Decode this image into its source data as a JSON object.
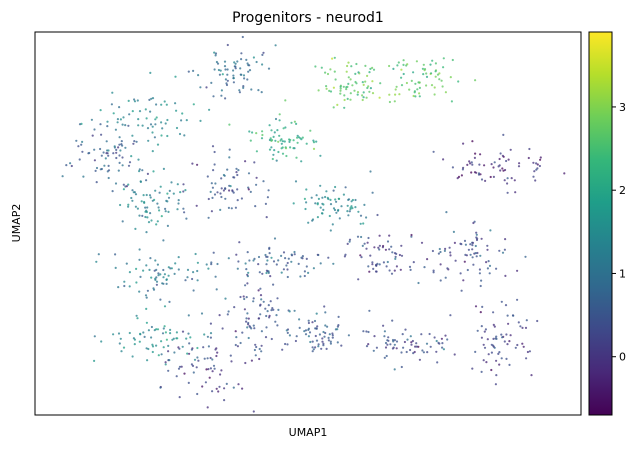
{
  "chart_data": {
    "type": "scatter",
    "title": "Progenitors - neurod1",
    "xlabel": "UMAP1",
    "ylabel": "UMAP2",
    "x_ticks_visible": false,
    "y_ticks_visible": false,
    "colorbar": {
      "colormap": "viridis",
      "range": [
        -0.7,
        3.9
      ],
      "ticks": [
        0,
        1,
        2,
        3
      ],
      "tick_labels": [
        "0",
        "1",
        "2",
        "3"
      ],
      "stops": [
        "#440154",
        "#482878",
        "#3e4989",
        "#31688e",
        "#26828e",
        "#1f9e89",
        "#35b779",
        "#6ece58",
        "#b5de2b",
        "#fde725"
      ]
    },
    "clusters": [
      {
        "x": 0.7,
        "y": 0.88,
        "value": 2.6
      },
      {
        "x": 0.58,
        "y": 0.86,
        "value": 2.7
      },
      {
        "x": 0.46,
        "y": 0.72,
        "value": 2.1
      },
      {
        "x": 0.55,
        "y": 0.55,
        "value": 1.3
      },
      {
        "x": 0.85,
        "y": 0.65,
        "value": 0.0
      },
      {
        "x": 0.36,
        "y": 0.9,
        "value": 0.8
      },
      {
        "x": 0.22,
        "y": 0.77,
        "value": 1.4
      },
      {
        "x": 0.12,
        "y": 0.68,
        "value": 0.6
      },
      {
        "x": 0.21,
        "y": 0.55,
        "value": 1.3
      },
      {
        "x": 0.35,
        "y": 0.6,
        "value": 0.5
      },
      {
        "x": 0.24,
        "y": 0.37,
        "value": 1.1
      },
      {
        "x": 0.44,
        "y": 0.4,
        "value": 0.6
      },
      {
        "x": 0.63,
        "y": 0.42,
        "value": 0.3
      },
      {
        "x": 0.8,
        "y": 0.42,
        "value": 0.4
      },
      {
        "x": 0.4,
        "y": 0.26,
        "value": 0.3
      },
      {
        "x": 0.22,
        "y": 0.2,
        "value": 1.5
      },
      {
        "x": 0.52,
        "y": 0.21,
        "value": 0.6
      },
      {
        "x": 0.68,
        "y": 0.18,
        "value": 0.4
      },
      {
        "x": 0.85,
        "y": 0.2,
        "value": 0.2
      },
      {
        "x": 0.32,
        "y": 0.13,
        "value": 0.1
      }
    ]
  }
}
